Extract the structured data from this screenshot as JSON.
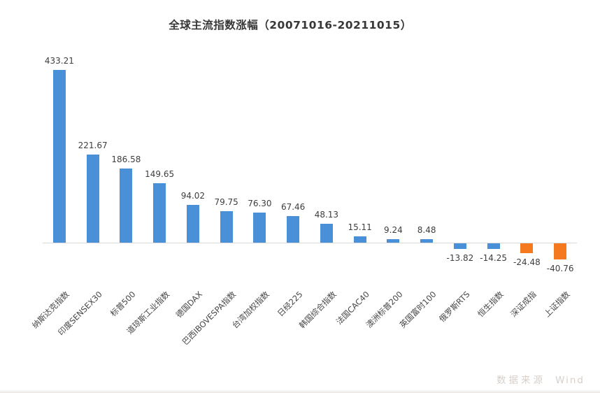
{
  "chart_data": {
    "type": "bar",
    "title": "全球主流指数涨幅（20071016-20211015）",
    "categories": [
      "纳斯达克指数",
      "印度SENSEX30",
      "标普500",
      "道琼斯工业指数",
      "德国DAX",
      "巴西IBOVESPA指数",
      "台湾加权指数",
      "日经225",
      "韩国综合指数",
      "法国CAC40",
      "澳洲标普200",
      "英国富时100",
      "俄罗斯RTS",
      "恒生指数",
      "深证成指",
      "上证指数"
    ],
    "values": [
      433.21,
      221.67,
      186.58,
      149.65,
      94.02,
      79.75,
      76.3,
      67.46,
      48.13,
      15.11,
      9.24,
      8.48,
      -13.82,
      -14.25,
      -24.48,
      -40.76
    ],
    "value_labels": [
      "433.21",
      "221.67",
      "186.58",
      "149.65",
      "94.02",
      "79.75",
      "76.30",
      "67.46",
      "48.13",
      "15.11",
      "9.24",
      "8.48",
      "-13.82",
      "-14.25",
      "-24.48",
      "-40.76"
    ],
    "bar_colors": [
      "blue",
      "blue",
      "blue",
      "blue",
      "blue",
      "blue",
      "blue",
      "blue",
      "blue",
      "blue",
      "blue",
      "blue",
      "blue",
      "blue",
      "orange",
      "orange"
    ],
    "palette": {
      "blue": "#4a90d8",
      "orange": "#f5791f"
    },
    "axis_color": "#dadada",
    "xlabel": "",
    "ylabel": "",
    "grid": false,
    "legend": "none",
    "baseline": 0,
    "source": {
      "label": "数据来源",
      "name": "Wind"
    }
  }
}
